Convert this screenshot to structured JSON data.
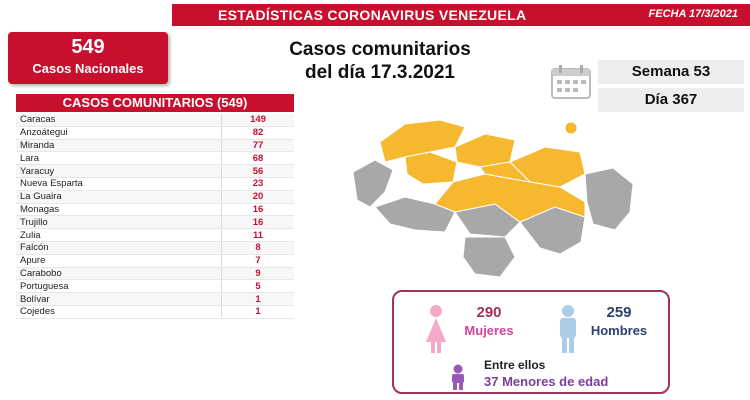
{
  "header": {
    "title": "ESTADÍSTICAS CORONAVIRUS VENEZUELA",
    "date": "FECHA 17/3/2021"
  },
  "national": {
    "count": "549",
    "label": "Casos Nacionales"
  },
  "main_title": {
    "line1": "Casos comunitarios",
    "line2": "del día 17.3.2021"
  },
  "calendar": {
    "icon": "calendar-icon",
    "week": "Semana 53",
    "day": "Día 367"
  },
  "table": {
    "header": "CASOS COMUNITARIOS (549)",
    "rows": [
      {
        "name": "Caracas",
        "value": "149"
      },
      {
        "name": "Anzoátegui",
        "value": "82"
      },
      {
        "name": "Miranda",
        "value": "77"
      },
      {
        "name": "Lara",
        "value": "68"
      },
      {
        "name": "Yaracuy",
        "value": "56"
      },
      {
        "name": "Nueva Esparta",
        "value": "23"
      },
      {
        "name": "La Guaira",
        "value": "20"
      },
      {
        "name": "Monagas",
        "value": "16"
      },
      {
        "name": "Trujillo",
        "value": "16"
      },
      {
        "name": "Zulia",
        "value": "11"
      },
      {
        "name": "Falcón",
        "value": "8"
      },
      {
        "name": "Apure",
        "value": "7"
      },
      {
        "name": "Carabobo",
        "value": "9"
      },
      {
        "name": "Portuguesa",
        "value": "5"
      },
      {
        "name": "Bolívar",
        "value": "1"
      },
      {
        "name": "Cojedes",
        "value": "1"
      }
    ]
  },
  "map": {
    "highlight_color": "#f5b82e",
    "base_color": "#a8a8a8"
  },
  "gender": {
    "women_count": "290",
    "women_label": "Mujeres",
    "men_count": "259",
    "men_label": "Hombres",
    "minors_intro": "Entre ellos",
    "minors_count": "37",
    "minors_label": "Menores de edad",
    "woman_icon": "woman-icon",
    "man_icon": "man-icon",
    "child_icon": "child-icon"
  },
  "colors": {
    "accent_red": "#c8102e",
    "women_pink": "#d4459b",
    "men_blue": "#2b3f73",
    "minors_purple": "#7b3f9b"
  }
}
